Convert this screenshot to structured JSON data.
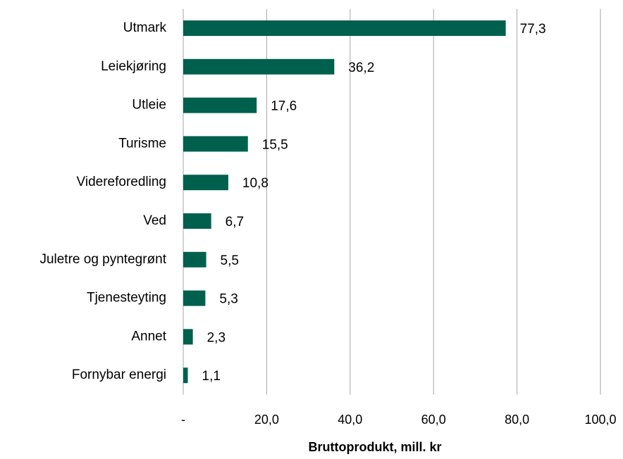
{
  "chart_data": {
    "type": "barh",
    "categories": [
      "Utmark",
      "Leiekjøring",
      "Utleie",
      "Turisme",
      "Videreforedling",
      "Ved",
      "Juletre og pyntegrønt",
      "Tjenesteyting",
      "Annet",
      "Fornybar energi"
    ],
    "values": [
      77.3,
      36.2,
      17.6,
      15.5,
      10.8,
      6.7,
      5.5,
      5.3,
      2.3,
      1.1
    ],
    "value_labels": [
      "77,3",
      "36,2",
      "17,6",
      "15,5",
      "10,8",
      "6,7",
      "5,5",
      "5,3",
      "2,3",
      "1,1"
    ],
    "color": "#00604e",
    "x_label": "Bruttoprodukt, mill. kr",
    "xlim": [
      0,
      100
    ],
    "xticks": [
      {
        "value": 0,
        "label": "-"
      },
      {
        "value": 20,
        "label": "20,0"
      },
      {
        "value": 40,
        "label": "40,0"
      },
      {
        "value": 60,
        "label": "60,0"
      },
      {
        "value": 80,
        "label": "80,0"
      },
      {
        "value": 100,
        "label": "100,0"
      }
    ],
    "grid": true
  }
}
